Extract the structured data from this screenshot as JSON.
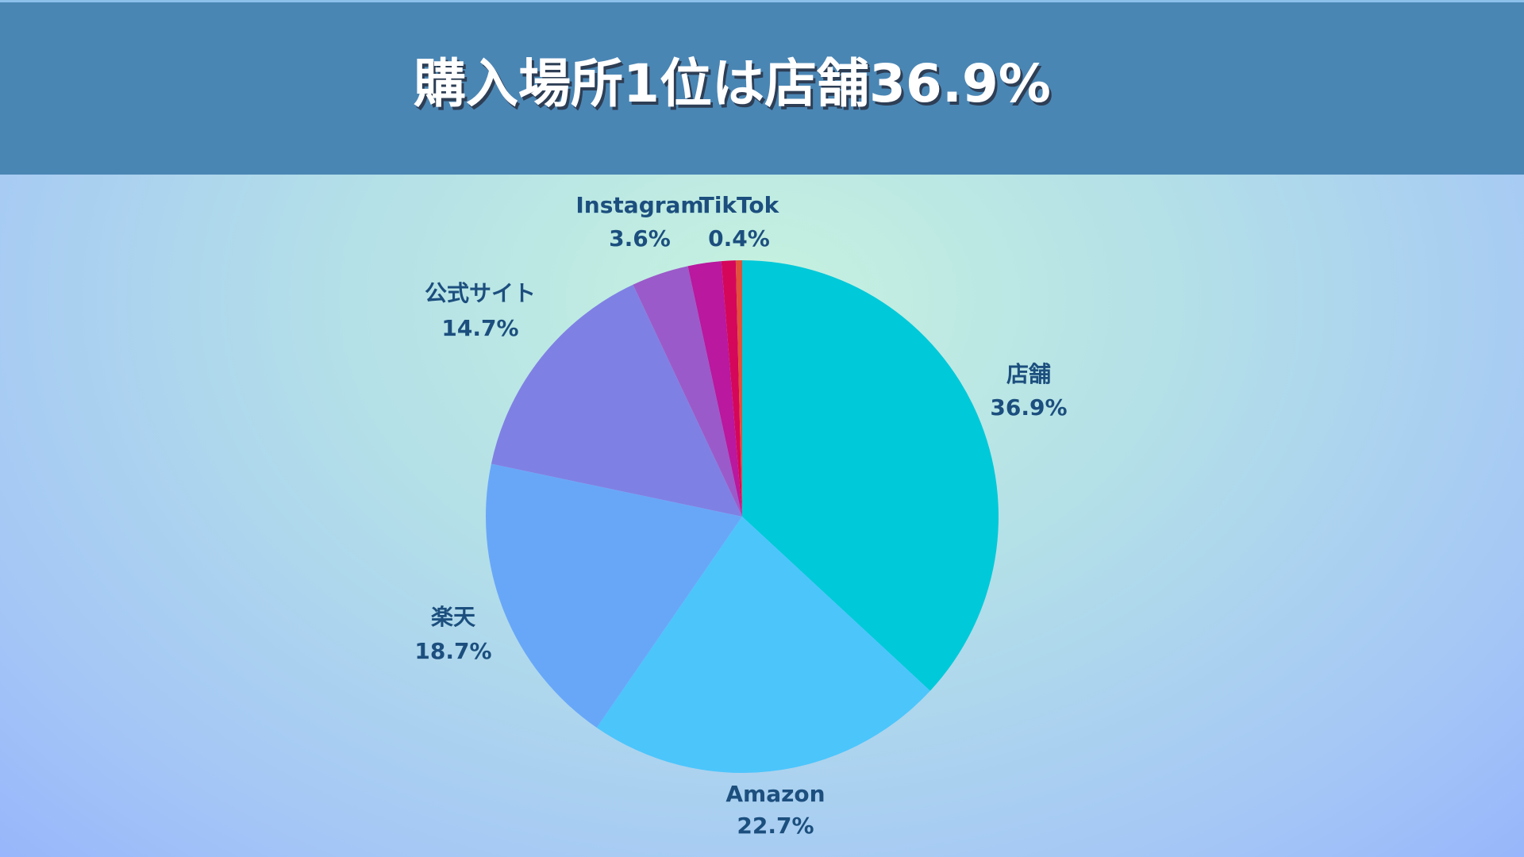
{
  "chart_data": {
    "type": "pie",
    "title": "購入場所1位は店舗36.9%",
    "categories": [
      "店舗",
      "Amazon",
      "楽天",
      "公式サイト",
      "Instagram",
      null,
      null,
      "TikTok"
    ],
    "values": [
      36.9,
      22.7,
      18.7,
      14.7,
      3.6,
      2.1,
      0.9,
      0.4
    ],
    "value_labels": [
      "36.9%",
      "22.7%",
      "18.7%",
      "14.7%",
      "3.6%",
      null,
      null,
      "0.4%"
    ],
    "colors": [
      "#00c9d9",
      "#4cc5fb",
      "#68a7f8",
      "#7f80e4",
      "#9b5ac9",
      "#b9189f",
      "#d5075b",
      "#e0523a"
    ]
  }
}
